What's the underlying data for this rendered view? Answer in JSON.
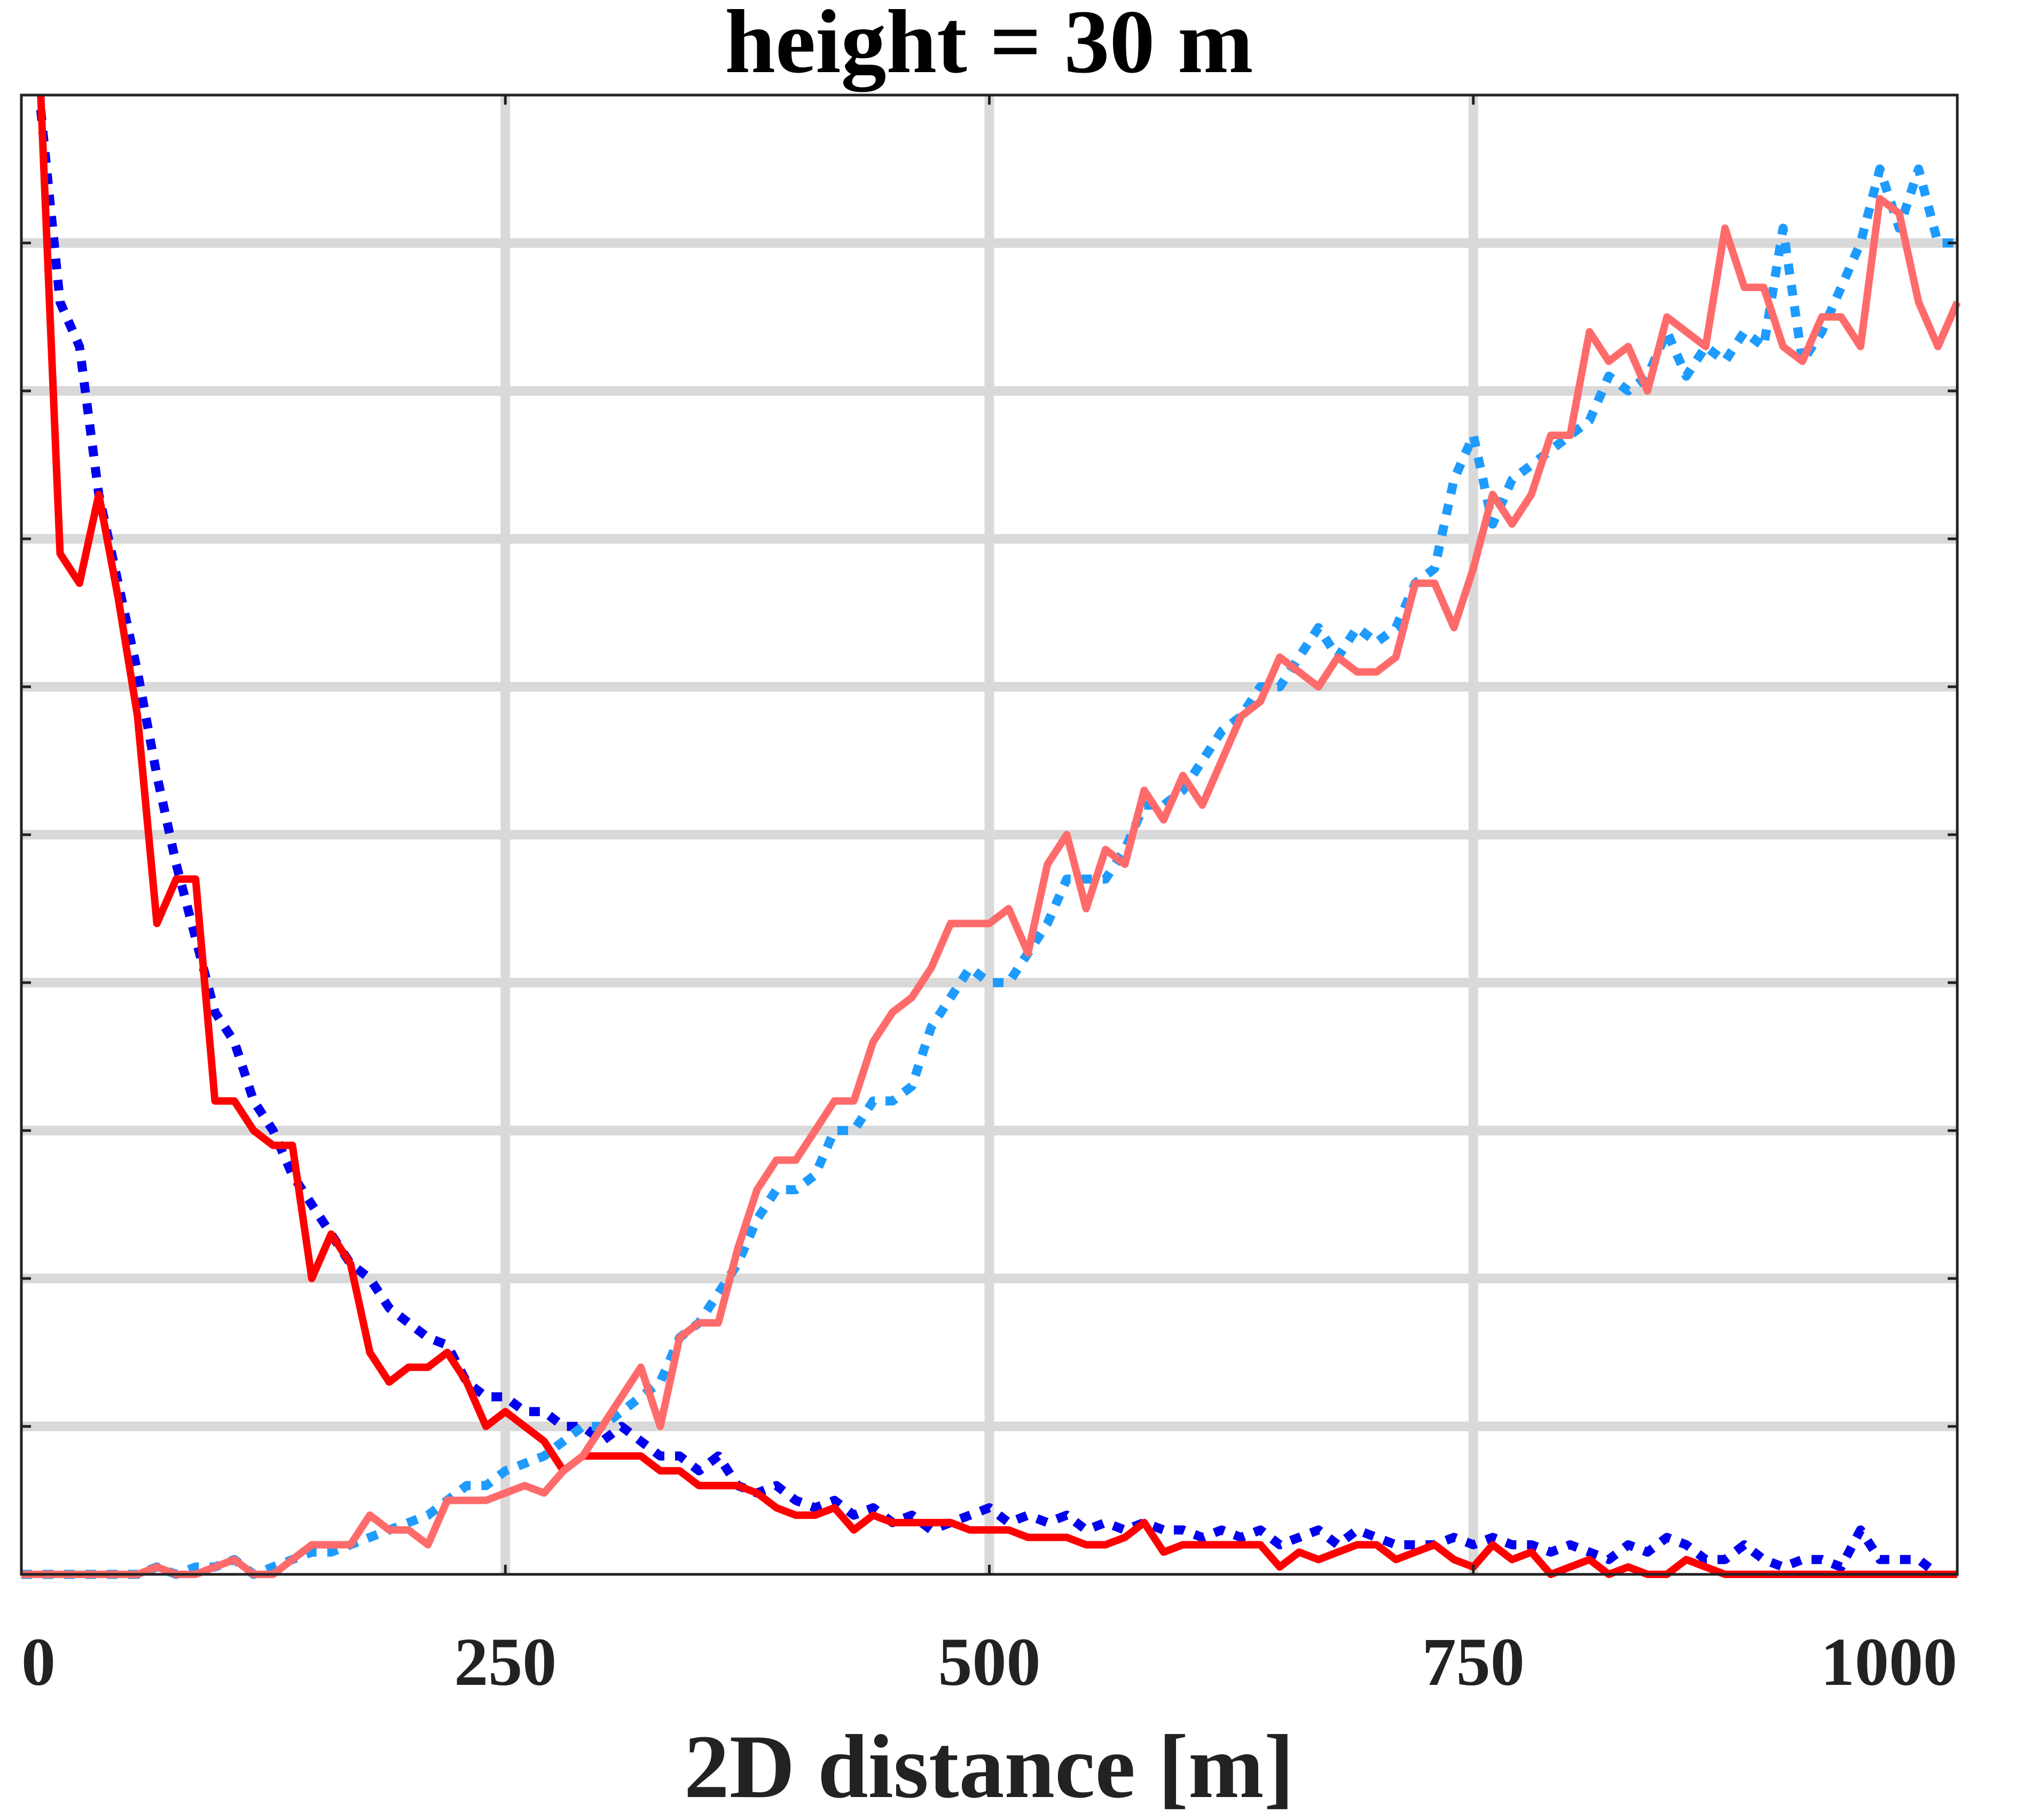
{
  "chart_data": {
    "type": "line",
    "title": "height = 30 m",
    "xlabel": "2D distance [m]",
    "ylabel": "",
    "xlim": [
      0,
      1000
    ],
    "ylim": [
      0,
      1
    ],
    "xticks": [
      0,
      250,
      500,
      750,
      1000
    ],
    "xtick_labels": [
      "0",
      "250",
      "500",
      "750",
      "1000"
    ],
    "yticks": [
      0,
      0.1,
      0.2,
      0.3,
      0.4,
      0.5,
      0.6,
      0.7,
      0.8,
      0.9
    ],
    "grid": true,
    "legend": "none",
    "series": [
      {
        "color": "#0000ee",
        "style": "dotted",
        "x": [
          10,
          20,
          30,
          40,
          50,
          60,
          70,
          80,
          90,
          100,
          110,
          120,
          130,
          140,
          150,
          160,
          170,
          180,
          190,
          200,
          210,
          220,
          230,
          240,
          250,
          260,
          270,
          280,
          290,
          300,
          310,
          320,
          330,
          340,
          350,
          360,
          370,
          380,
          390,
          400,
          410,
          420,
          430,
          440,
          450,
          460,
          470,
          480,
          490,
          500,
          510,
          520,
          530,
          540,
          550,
          560,
          570,
          580,
          590,
          600,
          610,
          620,
          630,
          640,
          650,
          660,
          670,
          680,
          690,
          700,
          710,
          720,
          730,
          740,
          750,
          760,
          770,
          780,
          790,
          800,
          810,
          820,
          830,
          840,
          850,
          860,
          870,
          880,
          890,
          900,
          910,
          920,
          930,
          940,
          950,
          960,
          970,
          980,
          990
        ],
        "y": [
          0.99,
          0.86,
          0.83,
          0.73,
          0.67,
          0.61,
          0.54,
          0.48,
          0.43,
          0.38,
          0.36,
          0.32,
          0.3,
          0.27,
          0.25,
          0.23,
          0.21,
          0.2,
          0.18,
          0.17,
          0.16,
          0.155,
          0.13,
          0.12,
          0.12,
          0.11,
          0.11,
          0.1,
          0.1,
          0.09,
          0.1,
          0.09,
          0.08,
          0.08,
          0.07,
          0.08,
          0.06,
          0.055,
          0.06,
          0.05,
          0.045,
          0.05,
          0.04,
          0.045,
          0.035,
          0.04,
          0.03,
          0.035,
          0.04,
          0.045,
          0.035,
          0.04,
          0.035,
          0.04,
          0.03,
          0.035,
          0.03,
          0.035,
          0.03,
          0.03,
          0.025,
          0.03,
          0.025,
          0.03,
          0.02,
          0.025,
          0.03,
          0.02,
          0.03,
          0.025,
          0.02,
          0.02,
          0.02,
          0.025,
          0.02,
          0.025,
          0.02,
          0.02,
          0.015,
          0.02,
          0.015,
          0.01,
          0.02,
          0.015,
          0.025,
          0.02,
          0.01,
          0.01,
          0.02,
          0.01,
          0.005,
          0.01,
          0.01,
          0.005,
          0.03,
          0.01,
          0.01,
          0.01,
          0.0
        ]
      },
      {
        "color": "#ff0000",
        "style": "solid",
        "x": [
          10,
          20,
          30,
          40,
          50,
          60,
          70,
          80,
          90,
          100,
          110,
          120,
          130,
          140,
          150,
          160,
          170,
          180,
          190,
          200,
          210,
          220,
          230,
          240,
          250,
          260,
          270,
          280,
          290,
          300,
          310,
          320,
          330,
          340,
          350,
          360,
          370,
          380,
          390,
          400,
          410,
          420,
          430,
          440,
          450,
          460,
          470,
          480,
          490,
          500,
          510,
          520,
          530,
          540,
          550,
          560,
          570,
          580,
          590,
          600,
          610,
          620,
          630,
          640,
          650,
          660,
          670,
          680,
          690,
          700,
          710,
          720,
          730,
          740,
          750,
          760,
          770,
          780,
          790,
          800,
          810,
          820,
          830,
          840,
          850,
          860,
          870,
          880,
          890,
          900,
          910,
          920,
          930,
          940,
          950,
          960,
          970,
          980,
          990,
          1000
        ],
        "y": [
          1.0,
          0.69,
          0.67,
          0.73,
          0.66,
          0.58,
          0.44,
          0.47,
          0.47,
          0.32,
          0.32,
          0.3,
          0.29,
          0.29,
          0.2,
          0.23,
          0.21,
          0.15,
          0.13,
          0.14,
          0.14,
          0.15,
          0.13,
          0.1,
          0.11,
          0.1,
          0.09,
          0.07,
          0.08,
          0.08,
          0.08,
          0.08,
          0.07,
          0.07,
          0.06,
          0.06,
          0.06,
          0.055,
          0.045,
          0.04,
          0.04,
          0.045,
          0.03,
          0.04,
          0.035,
          0.035,
          0.035,
          0.035,
          0.03,
          0.03,
          0.03,
          0.025,
          0.025,
          0.025,
          0.02,
          0.02,
          0.025,
          0.035,
          0.015,
          0.02,
          0.02,
          0.02,
          0.02,
          0.02,
          0.005,
          0.015,
          0.01,
          0.015,
          0.02,
          0.02,
          0.01,
          0.015,
          0.02,
          0.01,
          0.005,
          0.02,
          0.01,
          0.015,
          0.0,
          0.005,
          0.01,
          0.0,
          0.005,
          0.0,
          0.0,
          0.01,
          0.005,
          0.0,
          0.0,
          0.0,
          0.0,
          0.0,
          0.0,
          0.0,
          0.0,
          0.0,
          0.0,
          0.0,
          0.0,
          0.0
        ]
      },
      {
        "color": "#1e9bff",
        "style": "dotted",
        "x": [
          0,
          10,
          20,
          30,
          40,
          50,
          60,
          70,
          80,
          90,
          100,
          110,
          120,
          130,
          140,
          150,
          160,
          170,
          180,
          190,
          200,
          210,
          220,
          230,
          240,
          250,
          260,
          270,
          280,
          290,
          300,
          310,
          320,
          330,
          340,
          350,
          360,
          370,
          380,
          390,
          400,
          410,
          420,
          430,
          440,
          450,
          460,
          470,
          480,
          490,
          500,
          510,
          520,
          530,
          540,
          550,
          560,
          570,
          580,
          590,
          600,
          610,
          620,
          630,
          640,
          650,
          660,
          670,
          680,
          690,
          700,
          710,
          720,
          730,
          740,
          750,
          760,
          770,
          780,
          790,
          800,
          810,
          820,
          830,
          840,
          850,
          860,
          870,
          880,
          890,
          900,
          910,
          920,
          930,
          940,
          950,
          960,
          970,
          980,
          990,
          1000
        ],
        "y": [
          0,
          0,
          0,
          0,
          0,
          0,
          0,
          0.005,
          0.0,
          0.005,
          0.005,
          0.01,
          0.0,
          0.005,
          0.01,
          0.015,
          0.015,
          0.02,
          0.025,
          0.03,
          0.035,
          0.04,
          0.05,
          0.06,
          0.06,
          0.07,
          0.075,
          0.08,
          0.09,
          0.1,
          0.1,
          0.11,
          0.12,
          0.13,
          0.16,
          0.17,
          0.19,
          0.21,
          0.24,
          0.26,
          0.26,
          0.27,
          0.3,
          0.3,
          0.32,
          0.32,
          0.33,
          0.37,
          0.39,
          0.41,
          0.4,
          0.4,
          0.42,
          0.44,
          0.47,
          0.47,
          0.47,
          0.49,
          0.52,
          0.52,
          0.53,
          0.55,
          0.57,
          0.58,
          0.6,
          0.6,
          0.62,
          0.64,
          0.62,
          0.64,
          0.63,
          0.64,
          0.67,
          0.68,
          0.74,
          0.77,
          0.71,
          0.74,
          0.75,
          0.76,
          0.77,
          0.78,
          0.81,
          0.8,
          0.81,
          0.84,
          0.81,
          0.83,
          0.82,
          0.84,
          0.83,
          0.91,
          0.82,
          0.84,
          0.87,
          0.9,
          0.95,
          0.91,
          0.95,
          0.9,
          0.9
        ]
      },
      {
        "color": "#ff6b6b",
        "style": "solid",
        "x": [
          0,
          10,
          20,
          30,
          40,
          50,
          60,
          70,
          80,
          90,
          100,
          110,
          120,
          130,
          140,
          150,
          160,
          170,
          180,
          190,
          200,
          210,
          220,
          230,
          240,
          250,
          260,
          270,
          280,
          290,
          300,
          310,
          320,
          330,
          340,
          350,
          360,
          370,
          380,
          390,
          400,
          410,
          420,
          430,
          440,
          450,
          460,
          470,
          480,
          490,
          500,
          510,
          520,
          530,
          540,
          550,
          560,
          570,
          580,
          590,
          600,
          610,
          620,
          630,
          640,
          650,
          660,
          670,
          680,
          690,
          700,
          710,
          720,
          730,
          740,
          750,
          760,
          770,
          780,
          790,
          800,
          810,
          820,
          830,
          840,
          850,
          860,
          870,
          880,
          890,
          900,
          910,
          920,
          930,
          940,
          950,
          960,
          970,
          980,
          990,
          1000
        ],
        "y": [
          0,
          0,
          0,
          0,
          0,
          0,
          0,
          0.005,
          0,
          0,
          0.005,
          0.01,
          0,
          0,
          0.01,
          0.02,
          0.02,
          0.02,
          0.04,
          0.03,
          0.03,
          0.02,
          0.05,
          0.05,
          0.05,
          0.055,
          0.06,
          0.055,
          0.07,
          0.08,
          0.1,
          0.12,
          0.14,
          0.1,
          0.16,
          0.17,
          0.17,
          0.22,
          0.26,
          0.28,
          0.28,
          0.3,
          0.32,
          0.32,
          0.36,
          0.38,
          0.39,
          0.41,
          0.44,
          0.44,
          0.44,
          0.45,
          0.42,
          0.48,
          0.5,
          0.45,
          0.49,
          0.48,
          0.53,
          0.51,
          0.54,
          0.52,
          0.55,
          0.58,
          0.59,
          0.62,
          0.61,
          0.6,
          0.62,
          0.61,
          0.61,
          0.62,
          0.67,
          0.67,
          0.64,
          0.68,
          0.73,
          0.71,
          0.73,
          0.77,
          0.77,
          0.84,
          0.82,
          0.83,
          0.8,
          0.85,
          0.84,
          0.83,
          0.91,
          0.87,
          0.87,
          0.83,
          0.82,
          0.85,
          0.85,
          0.83,
          0.93,
          0.92,
          0.86,
          0.83,
          0.86
        ]
      }
    ]
  }
}
